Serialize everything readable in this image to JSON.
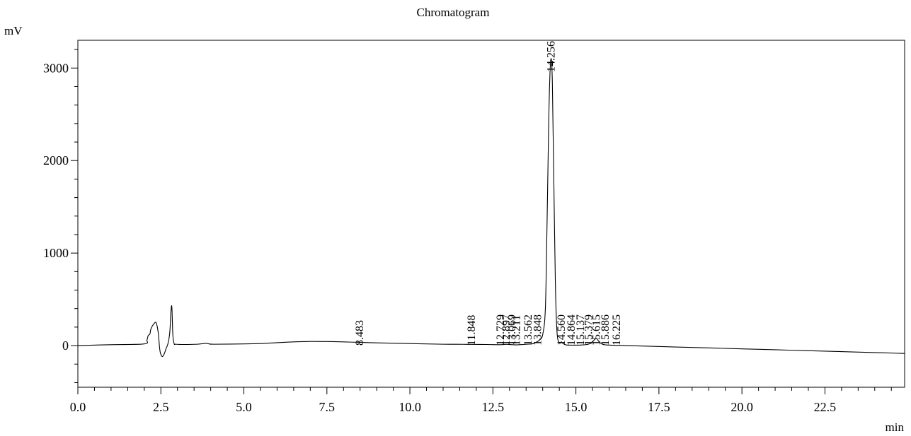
{
  "chart_data": {
    "type": "line",
    "title": "Chromatogram",
    "ylabel": "mV",
    "xlabel": "min",
    "xlim": [
      0.0,
      24.9
    ],
    "ylim": [
      -450,
      3300
    ],
    "x_ticks": [
      0.0,
      2.5,
      5.0,
      7.5,
      10.0,
      12.5,
      15.0,
      17.5,
      20.0,
      22.5
    ],
    "x_tick_labels": [
      "0.0",
      "2.5",
      "5.0",
      "7.5",
      "10.0",
      "12.5",
      "15.0",
      "17.5",
      "20.0",
      "22.5"
    ],
    "y_ticks": [
      0,
      1000,
      2000,
      3000
    ],
    "y_tick_labels": [
      "0",
      "1000",
      "2000",
      "3000"
    ],
    "grid": false,
    "series": [
      {
        "values_description_note": "",
        "x": [
          0.0,
          1.0,
          2.0,
          2.08,
          2.12,
          2.17,
          2.2,
          2.3,
          2.36,
          2.42,
          2.47,
          2.52,
          2.56,
          2.6,
          2.65,
          2.72,
          2.77,
          2.8,
          2.83,
          2.86,
          2.9,
          2.95,
          3.2,
          3.6,
          3.78,
          3.85,
          3.93,
          4.1,
          5.0,
          5.5,
          6.0,
          6.5,
          7.0,
          7.5,
          8.0,
          8.483,
          9.0,
          10.0,
          11.0,
          11.6,
          11.848,
          12.3,
          12.73,
          12.9,
          13.07,
          13.2,
          13.4,
          13.57,
          13.7,
          13.82,
          13.9,
          14.0,
          14.08,
          14.13,
          14.18,
          14.22,
          14.256,
          14.29,
          14.33,
          14.38,
          14.43,
          14.5,
          14.56,
          14.62,
          14.7,
          14.864,
          15.0,
          15.137,
          15.3,
          15.45,
          15.55,
          15.615,
          15.7,
          15.8,
          15.9,
          16.225,
          17.0,
          18.0,
          19.0,
          20.0,
          21.0,
          22.0,
          23.0,
          24.0,
          24.9
        ],
        "y": [
          0,
          10,
          18,
          60,
          110,
          125,
          180,
          240,
          245,
          140,
          -50,
          -110,
          -115,
          -90,
          -40,
          30,
          150,
          350,
          420,
          120,
          20,
          15,
          12,
          15,
          22,
          25,
          20,
          15,
          18,
          22,
          32,
          40,
          45,
          44,
          40,
          35,
          30,
          22,
          15,
          14,
          13,
          12,
          10,
          14,
          10,
          8,
          12,
          16,
          20,
          40,
          60,
          120,
          400,
          1300,
          2400,
          2950,
          3100,
          2850,
          1900,
          700,
          150,
          30,
          40,
          20,
          8,
          5,
          5,
          6,
          10,
          25,
          60,
          80,
          40,
          15,
          8,
          3,
          -5,
          -15,
          -25,
          -35,
          -45,
          -55,
          -65,
          -75,
          -85
        ]
      }
    ],
    "peak_labels": [
      {
        "x": 8.483,
        "label": "8.483"
      },
      {
        "x": 11.848,
        "label": "11.848"
      },
      {
        "x": 12.729,
        "label": "12.729"
      },
      {
        "x": 12.897,
        "label": "12.897"
      },
      {
        "x": 13.069,
        "label": "13.069"
      },
      {
        "x": 13.211,
        "label": "13.211"
      },
      {
        "x": 13.562,
        "label": "13.562"
      },
      {
        "x": 13.848,
        "label": "13.848"
      },
      {
        "x": 14.256,
        "label": "14.256"
      },
      {
        "x": 14.56,
        "label": "14.560"
      },
      {
        "x": 14.864,
        "label": "14.864"
      },
      {
        "x": 15.137,
        "label": "15.137"
      },
      {
        "x": 15.379,
        "label": "15.379"
      },
      {
        "x": 15.615,
        "label": "15.615"
      },
      {
        "x": 15.886,
        "label": "15.886"
      },
      {
        "x": 16.225,
        "label": "16.225"
      }
    ]
  }
}
